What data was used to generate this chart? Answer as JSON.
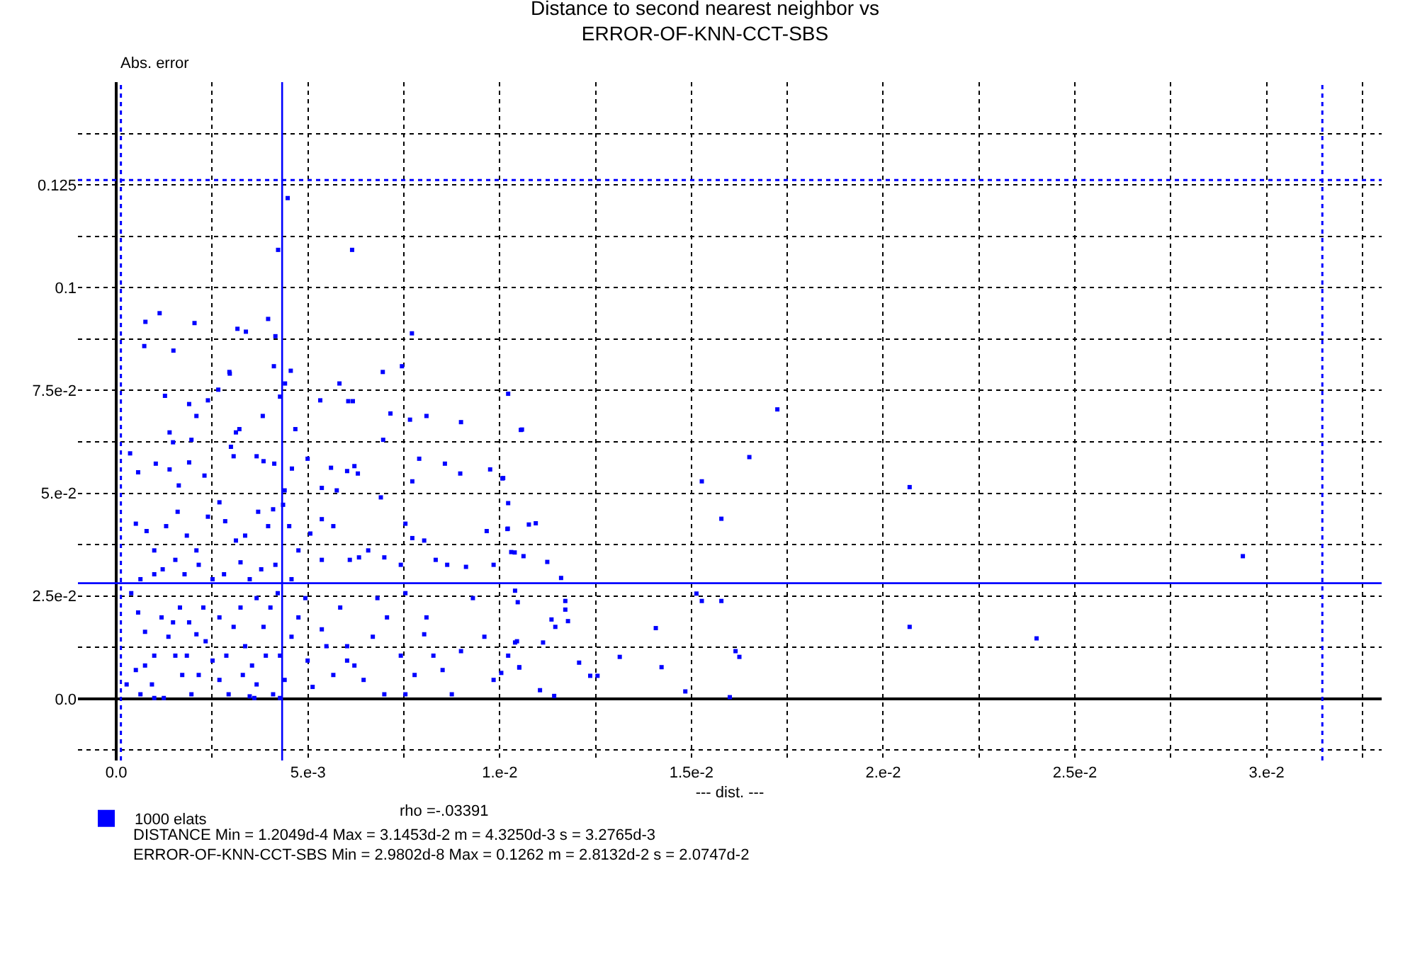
{
  "chart_data": {
    "type": "scatter",
    "title": "Distance to second nearest neighbor vs\nERROR-OF-KNN-CCT-SBS",
    "xlabel": "--- dist. ---",
    "ylabel": "Abs. error",
    "annotations": [
      "rho =-.03391",
      "DISTANCE Min = 1.2049d-4 Max = 3.1453d-2 m = 4.3250d-3 s = 3.2765d-3",
      "ERROR-OF-KNN-CCT-SBS Min = 2.9802d-8 Max = 0.1262 m = 2.8132d-2 s = 2.0747d-2"
    ],
    "xlim": [
      -0.001,
      0.033
    ],
    "ylim": [
      -0.015,
      0.15
    ],
    "xticks": [
      {
        "value": 0,
        "label": "0.0"
      },
      {
        "value": 0.0025,
        "label": null
      },
      {
        "value": 0.005,
        "label": "5.e-3"
      },
      {
        "value": 0.0075,
        "label": null
      },
      {
        "value": 0.01,
        "label": "1.e-2"
      },
      {
        "value": 0.0125,
        "label": null
      },
      {
        "value": 0.015,
        "label": "1.5e-2"
      },
      {
        "value": 0.0175,
        "label": null
      },
      {
        "value": 0.02,
        "label": "2.e-2"
      },
      {
        "value": 0.0225,
        "label": null
      },
      {
        "value": 0.025,
        "label": "2.5e-2"
      },
      {
        "value": 0.0275,
        "label": null
      },
      {
        "value": 0.03,
        "label": "3.e-2"
      },
      {
        "value": 0.0325,
        "label": null
      }
    ],
    "yticks": [
      {
        "value": -0.0125,
        "label": null
      },
      {
        "value": 0,
        "label": "0.0"
      },
      {
        "value": 0.0125,
        "label": null
      },
      {
        "value": 0.025,
        "label": "2.5e-2"
      },
      {
        "value": 0.0375,
        "label": null
      },
      {
        "value": 0.05,
        "label": "5.e-2"
      },
      {
        "value": 0.0625,
        "label": null
      },
      {
        "value": 0.075,
        "label": "7.5e-2"
      },
      {
        "value": 0.0875,
        "label": null
      },
      0.1,
      {
        "value": 0.1125,
        "label": null
      },
      0.125,
      {
        "value": 0.1375,
        "label": null
      }
    ],
    "grid": true,
    "legend": "bottom left",
    "marker": "square",
    "ref_lines": [
      {
        "axis": "x",
        "value": 0.004325,
        "label": null,
        "color": "#0000ff",
        "line_style": "solid"
      },
      {
        "axis": "y",
        "value": 0.028132,
        "label": null,
        "color": "#0000ff",
        "line_style": "solid"
      },
      {
        "axis": "x",
        "value": 0.00012049,
        "label": null,
        "color": "#0000ff",
        "line_style": "dotted"
      },
      {
        "axis": "x",
        "value": 0.031453,
        "label": null,
        "color": "#0000ff",
        "line_style": "dotted"
      },
      {
        "axis": "y",
        "value": 0.1262,
        "label": null,
        "color": "#0000ff",
        "line_style": "dotted"
      }
    ],
    "series": [
      {
        "name": "1000 elats",
        "color": "#0000ff",
        "x": [
          0.00447,
          0.00422,
          0.00615,
          0.00076,
          0.00113,
          0.00204,
          0.00073,
          0.00149,
          0.00316,
          0.00338,
          0.00396,
          0.00415,
          0.00771,
          0.00295,
          0.00411,
          0.00455,
          0.0044,
          0.00582,
          0.00695,
          0.00745,
          0.01022,
          0.01058,
          0.01724,
          0.01651,
          0.01527,
          0.01578,
          0.02069,
          0.02069,
          0.01007,
          0.01022,
          0.0102,
          0.0103,
          0.01062,
          0.01076,
          0.01094,
          0.01124,
          0.0116,
          0.0104,
          0.01047,
          0.01171,
          0.01171,
          0.01135,
          0.01145,
          0.01178,
          0.0104,
          0.01113,
          0.01022,
          0.01051,
          0.01004,
          0.01207,
          0.01236,
          0.01255,
          0.01313,
          0.01407,
          0.01422,
          0.01105,
          0.01142,
          0.01484,
          0.01513,
          0.01527,
          0.01578,
          0.01615,
          0.01625,
          0.016,
          0.02938,
          0.024,
          0.00296,
          0.00266,
          0.00127,
          0.00239,
          0.0019,
          0.00209,
          0.00382,
          0.00467,
          0.00427,
          0.00532,
          0.00605,
          0.00617,
          0.00715,
          0.00766,
          0.00809,
          0.00899,
          0.01055,
          0.00139,
          0.00148,
          0.00196,
          0.00321,
          0.00312,
          0.00036,
          0.00057,
          0.00103,
          0.00139,
          0.00163,
          0.0019,
          0.0023,
          0.00306,
          0.00299,
          0.00366,
          0.00384,
          0.00412,
          0.00458,
          0.0056,
          0.00602,
          0.00621,
          0.0063,
          0.00772,
          0.0079,
          0.00857,
          0.00897,
          0.00975,
          0.01009,
          0.00696,
          0.00575,
          0.00536,
          0.00499,
          0.00439,
          0.00051,
          0.00079,
          0.00099,
          0.0013,
          0.0016,
          0.00184,
          0.00209,
          0.00239,
          0.00269,
          0.00284,
          0.00312,
          0.00336,
          0.0037,
          0.00396,
          0.00409,
          0.00435,
          0.00451,
          0.00475,
          0.00506,
          0.00536,
          0.00566,
          0.00609,
          0.00657,
          0.00699,
          0.00742,
          0.00772,
          0.00803,
          0.00833,
          0.00863,
          0.00912,
          0.00984,
          0.01039,
          0.01021,
          0.00121,
          0.00154,
          0.00178,
          0.00215,
          0.00251,
          0.00281,
          0.00324,
          0.00348,
          0.00378,
          0.00415,
          0.00457,
          0.00536,
          0.00633,
          0.0069,
          0.00754,
          0.00966,
          0.00099,
          0.00063,
          0.00039,
          0.00057,
          0.00075,
          0.00099,
          0.00051,
          0.00063,
          0.00093,
          0.00118,
          0.00136,
          0.00154,
          0.00172,
          0.00196,
          0.00166,
          0.0019,
          0.00227,
          0.00233,
          0.00251,
          0.00269,
          0.00293,
          0.00306,
          0.00324,
          0.00336,
          0.00354,
          0.00366,
          0.00384,
          0.00402,
          0.00421,
          0.00427,
          0.00439,
          0.00457,
          0.00475,
          0.00493,
          0.00499,
          0.00512,
          0.00536,
          0.00548,
          0.00566,
          0.00602,
          0.00621,
          0.00645,
          0.00669,
          0.00706,
          0.00742,
          0.00754,
          0.00778,
          0.00809,
          0.00827,
          0.00851,
          0.00875,
          0.00899,
          0.0093,
          0.0096,
          0.00984,
          0.01045,
          0.01051,
          0.00699,
          0.00184,
          0.00215,
          0.0036,
          0.00348,
          0.00409,
          0.00427,
          0.00584,
          0.00681,
          0.00602,
          0.00803,
          0.00754,
          0.00099,
          0.00124,
          0.00027,
          0.00075,
          0.00148,
          0.00209,
          0.00287,
          0.0033,
          0.0039,
          0.00269,
          0.00366
        ],
        "values": [
          0.1218,
          0.1092,
          0.1092,
          0.0917,
          0.0938,
          0.0914,
          0.0858,
          0.0847,
          0.09,
          0.0893,
          0.0924,
          0.0882,
          0.0889,
          0.0795,
          0.0809,
          0.0798,
          0.0767,
          0.0767,
          0.0795,
          0.0809,
          0.0742,
          0.0655,
          0.0704,
          0.0588,
          0.0529,
          0.0438,
          0.0515,
          0.0175,
          0.0536,
          0.0476,
          0.0413,
          0.0357,
          0.0347,
          0.0424,
          0.0427,
          0.0333,
          0.0294,
          0.0263,
          0.0235,
          0.0238,
          0.0217,
          0.0193,
          0.0175,
          0.0189,
          0.0137,
          0.0137,
          0.0105,
          0.0077,
          0.0063,
          0.0088,
          0.0056,
          0.0056,
          0.0102,
          0.0172,
          0.0077,
          0.0021,
          0.0007,
          0.0018,
          0.0256,
          0.0238,
          0.0238,
          0.0116,
          0.0102,
          0.0004,
          0.0347,
          0.0147,
          0.0791,
          0.0752,
          0.0737,
          0.0726,
          0.0717,
          0.0688,
          0.0688,
          0.0656,
          0.0735,
          0.0726,
          0.0724,
          0.0724,
          0.0694,
          0.0679,
          0.0688,
          0.0673,
          0.0654,
          0.0648,
          0.0624,
          0.063,
          0.0656,
          0.0648,
          0.0597,
          0.0551,
          0.0572,
          0.0558,
          0.0519,
          0.0575,
          0.0543,
          0.059,
          0.0613,
          0.059,
          0.0578,
          0.0572,
          0.056,
          0.0562,
          0.0554,
          0.0566,
          0.0548,
          0.0529,
          0.0584,
          0.0572,
          0.0548,
          0.0558,
          0.0537,
          0.063,
          0.0507,
          0.0513,
          0.0584,
          0.0507,
          0.0426,
          0.0408,
          0.0361,
          0.042,
          0.0455,
          0.0397,
          0.0361,
          0.0443,
          0.0478,
          0.0432,
          0.0385,
          0.0397,
          0.0455,
          0.042,
          0.0461,
          0.0472,
          0.042,
          0.0361,
          0.0402,
          0.0437,
          0.042,
          0.0338,
          0.0361,
          0.0344,
          0.0326,
          0.0391,
          0.0385,
          0.0338,
          0.0326,
          0.0321,
          0.0326,
          0.0356,
          0.0414,
          0.0315,
          0.0338,
          0.0303,
          0.0326,
          0.0291,
          0.0303,
          0.0332,
          0.0291,
          0.0315,
          0.0326,
          0.0291,
          0.0338,
          0.0344,
          0.049,
          0.0426,
          0.0408,
          0.0303,
          0.0291,
          0.0257,
          0.021,
          0.0163,
          0.0105,
          0.007,
          0.0011,
          0.0035,
          0.0198,
          0.0151,
          0.0105,
          0.0058,
          0.0011,
          0.0222,
          0.0186,
          0.0222,
          0.014,
          0.0093,
          0.0046,
          0.0011,
          0.0175,
          0.0222,
          0.0128,
          0.0081,
          0.0035,
          0.0175,
          0.0222,
          0.0257,
          0.0105,
          0.0046,
          0.0151,
          0.0198,
          0.0245,
          0.0093,
          0.0029,
          0.0169,
          0.0128,
          0.0058,
          0.0128,
          0.0081,
          0.0046,
          0.0151,
          0.0198,
          0.0105,
          0.0257,
          0.0058,
          0.0198,
          0.0105,
          0.007,
          0.0011,
          0.0116,
          0.0245,
          0.0151,
          0.0046,
          0.014,
          0.0076,
          0.0011,
          0.0105,
          0.0058,
          0.0002,
          0.0006,
          0.0011,
          0.0002,
          0.0222,
          0.0245,
          0.0093,
          0.0157,
          0.0011,
          0.0002,
          0.0002,
          0.0035,
          0.0081,
          0.0186,
          0.0157,
          0.0105,
          0.0058,
          0.0105,
          0.0198,
          0.0245
        ]
      }
    ]
  }
}
